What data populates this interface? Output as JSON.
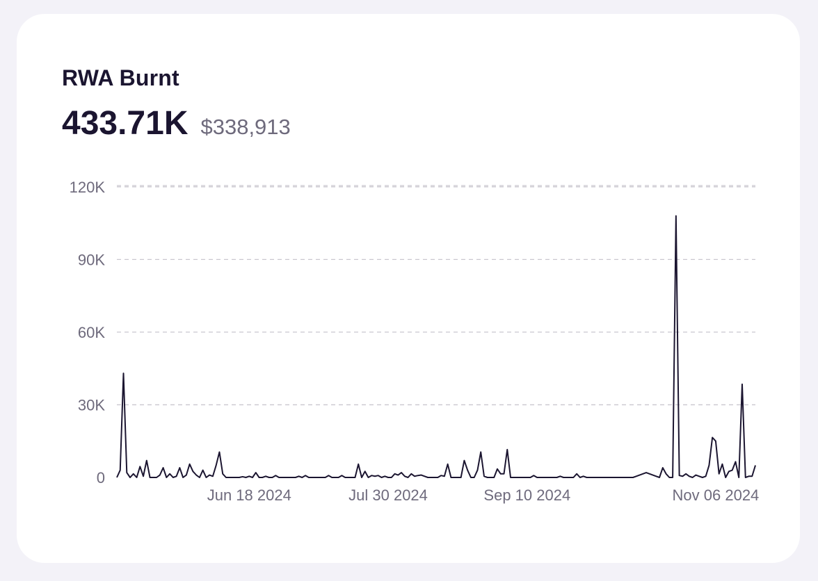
{
  "card": {
    "title": "RWA Burnt",
    "total_value": "433.71K",
    "total_usd": "$338,913"
  },
  "colors": {
    "line": "#1b1530",
    "grid": "#c9c7cf",
    "label": "#6e6a7c"
  },
  "chart_data": {
    "type": "line",
    "title": "RWA Burnt",
    "xlabel": "",
    "ylabel": "",
    "grid": true,
    "ylim": [
      0,
      134000
    ],
    "y_ticks": [
      0,
      30000,
      60000,
      90000,
      120000
    ],
    "y_tick_labels": [
      "0",
      "30K",
      "60K",
      "90K",
      "120K"
    ],
    "x_tick_labels": [
      {
        "index": 40,
        "label": "Jun 18 2024"
      },
      {
        "index": 82,
        "label": "Jul 30 2024"
      },
      {
        "index": 124,
        "label": "Sep 10 2024"
      },
      {
        "index": 181,
        "label": "Nov 06 2024"
      }
    ],
    "series": [
      {
        "name": "RWA Burnt",
        "values": [
          0,
          3000,
          43000,
          2000,
          0,
          1500,
          0,
          4500,
          500,
          7000,
          0,
          0,
          0,
          1000,
          4000,
          0,
          1500,
          0,
          500,
          4000,
          0,
          1000,
          5500,
          2500,
          1000,
          0,
          3000,
          0,
          1000,
          500,
          5000,
          10500,
          1500,
          0,
          0,
          0,
          0,
          0,
          300,
          0,
          500,
          0,
          2000,
          0,
          0,
          500,
          0,
          0,
          800,
          0,
          0,
          0,
          0,
          0,
          0,
          500,
          0,
          800,
          0,
          0,
          0,
          0,
          0,
          0,
          800,
          0,
          0,
          0,
          800,
          0,
          0,
          0,
          0,
          5500,
          0,
          2500,
          0,
          800,
          500,
          800,
          0,
          500,
          0,
          0,
          1500,
          1000,
          2000,
          500,
          0,
          1500,
          500,
          800,
          1000,
          500,
          0,
          0,
          0,
          0,
          800,
          500,
          5500,
          0,
          0,
          0,
          0,
          7000,
          3000,
          0,
          0,
          3000,
          10500,
          500,
          0,
          0,
          0,
          3500,
          1500,
          1500,
          11500,
          0,
          0,
          0,
          0,
          0,
          0,
          0,
          800,
          0,
          0,
          0,
          0,
          0,
          0,
          0,
          500,
          0,
          0,
          0,
          0,
          1500,
          0,
          500,
          0,
          0,
          0,
          0,
          0,
          0,
          0,
          0,
          0,
          0,
          0,
          0,
          0,
          0,
          0,
          500,
          1000,
          1500,
          2000,
          1500,
          1000,
          500,
          0,
          4000,
          1500,
          0,
          0,
          108000,
          800,
          500,
          1500,
          500,
          0,
          1000,
          500,
          0,
          500,
          5000,
          16500,
          15000,
          1500,
          5500,
          0,
          2500,
          3000,
          6500,
          0,
          38500,
          0,
          500,
          500,
          5000
        ]
      }
    ]
  }
}
